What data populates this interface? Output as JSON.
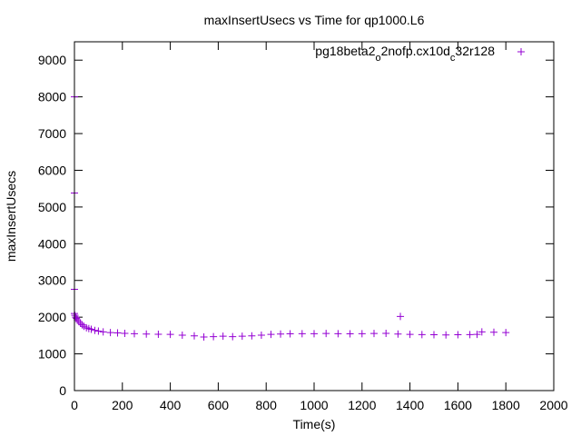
{
  "chart_data": {
    "type": "scatter",
    "title": "maxInsertUsecs vs Time for qp1000.L6",
    "xlabel": "Time(s)",
    "ylabel": "maxInsertUsecs",
    "xlim": [
      0,
      2000
    ],
    "ylim": [
      0,
      9500
    ],
    "x_ticks": [
      0,
      200,
      400,
      600,
      800,
      1000,
      1200,
      1400,
      1600,
      1800,
      2000
    ],
    "y_ticks": [
      0,
      1000,
      2000,
      3000,
      4000,
      5000,
      6000,
      7000,
      8000,
      9000
    ],
    "grid": false,
    "legend_position": "top-right",
    "series": [
      {
        "name_parts": [
          "pg18beta2",
          "o",
          "2nofp.cx10d",
          "c",
          "32r128"
        ],
        "color": "#9400d3",
        "marker": "plus",
        "points": [
          [
            0,
            8000
          ],
          [
            0,
            5380
          ],
          [
            0,
            2760
          ],
          [
            0,
            2100
          ],
          [
            2,
            2050
          ],
          [
            5,
            2000
          ],
          [
            8,
            1970
          ],
          [
            12,
            1930
          ],
          [
            18,
            1880
          ],
          [
            25,
            1830
          ],
          [
            32,
            1790
          ],
          [
            40,
            1750
          ],
          [
            50,
            1710
          ],
          [
            60,
            1690
          ],
          [
            70,
            1670
          ],
          [
            85,
            1640
          ],
          [
            100,
            1620
          ],
          [
            120,
            1600
          ],
          [
            150,
            1580
          ],
          [
            180,
            1570
          ],
          [
            210,
            1560
          ],
          [
            250,
            1550
          ],
          [
            300,
            1540
          ],
          [
            350,
            1535
          ],
          [
            400,
            1530
          ],
          [
            450,
            1510
          ],
          [
            500,
            1490
          ],
          [
            540,
            1460
          ],
          [
            580,
            1470
          ],
          [
            620,
            1480
          ],
          [
            660,
            1470
          ],
          [
            700,
            1480
          ],
          [
            740,
            1490
          ],
          [
            780,
            1510
          ],
          [
            820,
            1530
          ],
          [
            860,
            1540
          ],
          [
            900,
            1545
          ],
          [
            950,
            1550
          ],
          [
            1000,
            1550
          ],
          [
            1050,
            1555
          ],
          [
            1100,
            1550
          ],
          [
            1150,
            1545
          ],
          [
            1200,
            1550
          ],
          [
            1250,
            1555
          ],
          [
            1300,
            1560
          ],
          [
            1350,
            1540
          ],
          [
            1360,
            2020
          ],
          [
            1400,
            1530
          ],
          [
            1450,
            1525
          ],
          [
            1500,
            1520
          ],
          [
            1550,
            1515
          ],
          [
            1600,
            1520
          ],
          [
            1650,
            1525
          ],
          [
            1680,
            1530
          ],
          [
            1700,
            1600
          ],
          [
            1750,
            1590
          ],
          [
            1800,
            1580
          ]
        ]
      }
    ]
  }
}
